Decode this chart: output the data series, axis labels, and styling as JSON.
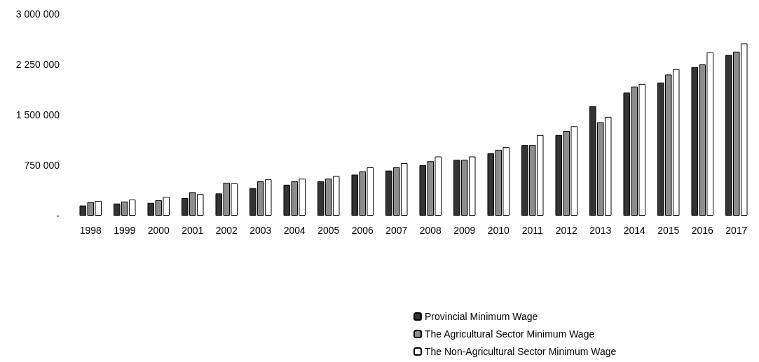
{
  "chart_data": {
    "type": "bar",
    "categories": [
      "1998",
      "1999",
      "2000",
      "2001",
      "2002",
      "2003",
      "2004",
      "2005",
      "2006",
      "2007",
      "2008",
      "2009",
      "2010",
      "2011",
      "2012",
      "2013",
      "2014",
      "2015",
      "2016",
      "2017"
    ],
    "series": [
      {
        "name": "Provincial Minimum Wage",
        "color": "#333333",
        "values": [
          150000,
          180000,
          190000,
          260000,
          330000,
          410000,
          460000,
          510000,
          610000,
          670000,
          750000,
          830000,
          930000,
          1050000,
          1200000,
          1630000,
          1830000,
          1980000,
          2210000,
          2390000
        ]
      },
      {
        "name": "The Agricultural Sector Minimum Wage",
        "color": "#8c8c8c",
        "values": [
          200000,
          210000,
          230000,
          350000,
          490000,
          510000,
          510000,
          550000,
          660000,
          720000,
          810000,
          830000,
          980000,
          1050000,
          1260000,
          1390000,
          1920000,
          2100000,
          2250000,
          2440000
        ]
      },
      {
        "name": "The Non-Agricultural Sector Minimum Wage",
        "color": "#ffffff",
        "values": [
          220000,
          240000,
          280000,
          320000,
          480000,
          540000,
          550000,
          590000,
          720000,
          780000,
          880000,
          880000,
          1020000,
          1200000,
          1330000,
          1470000,
          1960000,
          2180000,
          2430000,
          2560000
        ]
      }
    ],
    "ylim": [
      0,
      3000000
    ],
    "yticks": [
      {
        "value": 0,
        "label": "-"
      },
      750000,
      1500000,
      2250000,
      3000000
    ],
    "grid": false,
    "legend": "bottom right"
  }
}
